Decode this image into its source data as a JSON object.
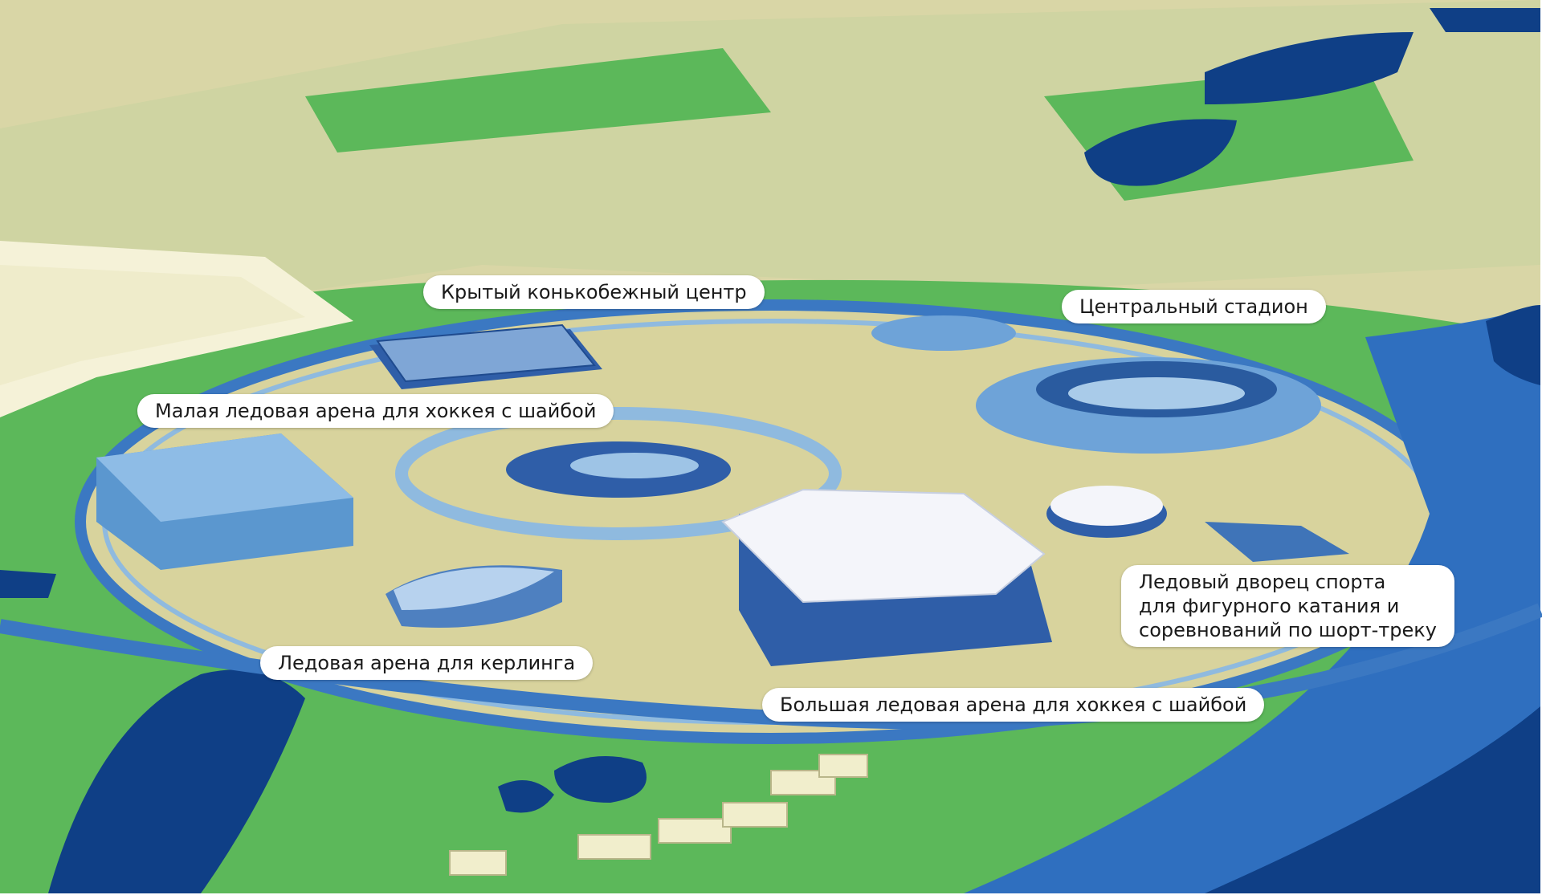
{
  "labels": [
    {
      "text": "Крытый конькобежный центр"
    },
    {
      "text": "Центральный стадион"
    },
    {
      "text": "Малая ледовая арена для хоккея с шайбой"
    },
    {
      "lines": [
        "Ледовый дворец спорта",
        "для фигурного катания и",
        "соревнований по шорт-треку"
      ]
    },
    {
      "text": "Ледовая арена для керлинга"
    },
    {
      "text": "Большая ледовая арена для хоккея с шайбой"
    }
  ]
}
